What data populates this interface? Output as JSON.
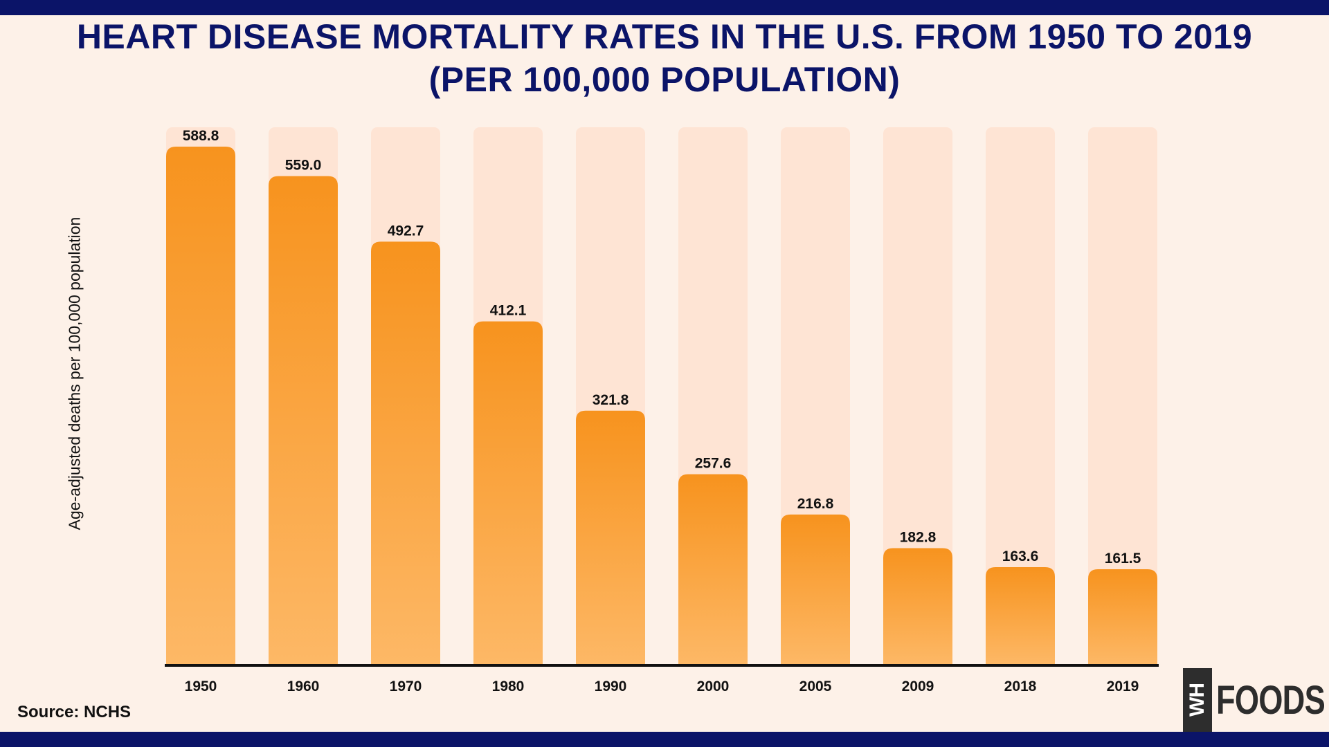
{
  "chart_data": {
    "type": "bar",
    "title_lines": [
      "HEART DISEASE MORTALITY RATES IN THE U.S. FROM 1950 TO 2019",
      "(PER 100,000 POPULATION)"
    ],
    "ylabel": "Age-adjusted deaths per 100,000 population",
    "xlabel": "",
    "categories": [
      "1950",
      "1960",
      "1970",
      "1980",
      "1990",
      "2000",
      "2005",
      "2009",
      "2018",
      "2019"
    ],
    "values": [
      588.8,
      559.0,
      492.7,
      412.1,
      321.8,
      257.6,
      216.8,
      182.8,
      163.6,
      161.5
    ],
    "value_labels": [
      "588.8",
      "559.0",
      "492.7",
      "412.1",
      "321.8",
      "257.6",
      "216.8",
      "182.8",
      "163.6",
      "161.5"
    ],
    "ylim": [
      65,
      615
    ],
    "grid": false,
    "colors": {
      "bar_top": "#f7931e",
      "bar_bottom": "#fdb866",
      "column_bg": "#fee4d4",
      "title": "#0b1468"
    }
  },
  "source": "Source: NCHS",
  "logo": {
    "mark": "WH",
    "text": "FOODS"
  }
}
